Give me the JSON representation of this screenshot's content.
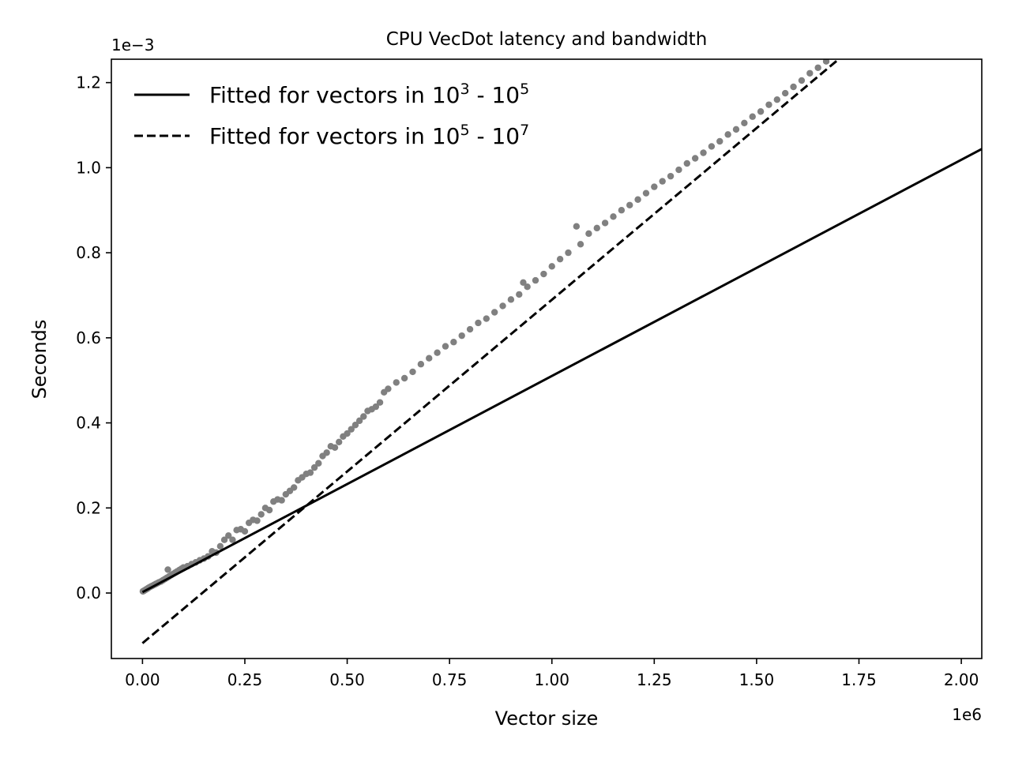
{
  "chart_data": {
    "type": "scatter",
    "title": "CPU VecDot latency and bandwidth",
    "xlabel": "Vector size",
    "ylabel": "Seconds",
    "x_offset_label": "1e6",
    "y_offset_label": "1e−3",
    "xlim": [
      -76000,
      2050000
    ],
    "ylim": [
      -0.000154,
      0.001255
    ],
    "x_ticks": [
      0,
      250000,
      500000,
      750000,
      1000000,
      1250000,
      1500000,
      1750000,
      2000000
    ],
    "x_tick_labels": [
      "0.00",
      "0.25",
      "0.50",
      "0.75",
      "1.00",
      "1.25",
      "1.50",
      "1.75",
      "2.00"
    ],
    "y_ticks": [
      0,
      0.0002,
      0.0004,
      0.0006,
      0.0008,
      0.001,
      0.0012
    ],
    "y_tick_labels": [
      "0.0",
      "0.2",
      "0.4",
      "0.6",
      "0.8",
      "1.0",
      "1.2"
    ],
    "grid": false,
    "legend": {
      "position": "top-left",
      "entries": [
        {
          "label_prefix": "Fitted for vectors in 10",
          "sup1": "3",
          "label_mid": " - 10",
          "sup2": "5",
          "style": "solid"
        },
        {
          "label_prefix": "Fitted for vectors in 10",
          "sup1": "5",
          "label_mid": " - 10",
          "sup2": "7",
          "style": "dashed"
        }
      ]
    },
    "series": [
      {
        "type": "scatter",
        "color": "#808080",
        "points": [
          [
            1000,
            4e-06
          ],
          [
            3000,
            5e-06
          ],
          [
            5000,
            6e-06
          ],
          [
            8000,
            8e-06
          ],
          [
            10000,
            9e-06
          ],
          [
            13000,
            1.1e-05
          ],
          [
            16000,
            1.3e-05
          ],
          [
            20000,
            1.5e-05
          ],
          [
            24000,
            1.7e-05
          ],
          [
            28000,
            1.9e-05
          ],
          [
            32000,
            2.1e-05
          ],
          [
            36000,
            2.3e-05
          ],
          [
            40000,
            2.5e-05
          ],
          [
            45000,
            2.7e-05
          ],
          [
            50000,
            3e-05
          ],
          [
            55000,
            3.3e-05
          ],
          [
            60000,
            3.6e-05
          ],
          [
            62000,
            5.5e-05
          ],
          [
            65000,
            3.9e-05
          ],
          [
            70000,
            4.2e-05
          ],
          [
            75000,
            4.5e-05
          ],
          [
            80000,
            4.8e-05
          ],
          [
            85000,
            5.1e-05
          ],
          [
            90000,
            5.4e-05
          ],
          [
            95000,
            5.7e-05
          ],
          [
            100000,
            6e-05
          ],
          [
            110000,
            6.3e-05
          ],
          [
            120000,
            6.8e-05
          ],
          [
            130000,
            7.2e-05
          ],
          [
            140000,
            7.7e-05
          ],
          [
            150000,
            8.1e-05
          ],
          [
            160000,
            8.6e-05
          ],
          [
            170000,
            9.8e-05
          ],
          [
            180000,
            9.5e-05
          ],
          [
            190000,
            0.00011
          ],
          [
            200000,
            0.000125
          ],
          [
            210000,
            0.000135
          ],
          [
            220000,
            0.000125
          ],
          [
            230000,
            0.000148
          ],
          [
            240000,
            0.00015
          ],
          [
            250000,
            0.000145
          ],
          [
            260000,
            0.000165
          ],
          [
            270000,
            0.000172
          ],
          [
            280000,
            0.00017
          ],
          [
            290000,
            0.000185
          ],
          [
            300000,
            0.0002
          ],
          [
            310000,
            0.000195
          ],
          [
            320000,
            0.000215
          ],
          [
            330000,
            0.00022
          ],
          [
            340000,
            0.000218
          ],
          [
            350000,
            0.000232
          ],
          [
            360000,
            0.00024
          ],
          [
            370000,
            0.000248
          ],
          [
            380000,
            0.000265
          ],
          [
            390000,
            0.000272
          ],
          [
            400000,
            0.00028
          ],
          [
            410000,
            0.000283
          ],
          [
            420000,
            0.000295
          ],
          [
            430000,
            0.000305
          ],
          [
            440000,
            0.000322
          ],
          [
            450000,
            0.00033
          ],
          [
            460000,
            0.000345
          ],
          [
            470000,
            0.000342
          ],
          [
            480000,
            0.000355
          ],
          [
            490000,
            0.000368
          ],
          [
            500000,
            0.000375
          ],
          [
            510000,
            0.000385
          ],
          [
            520000,
            0.000395
          ],
          [
            530000,
            0.000405
          ],
          [
            540000,
            0.000415
          ],
          [
            550000,
            0.000428
          ],
          [
            560000,
            0.000432
          ],
          [
            570000,
            0.000438
          ],
          [
            580000,
            0.000448
          ],
          [
            590000,
            0.000472
          ],
          [
            600000,
            0.00048
          ],
          [
            620000,
            0.000495
          ],
          [
            640000,
            0.000505
          ],
          [
            660000,
            0.00052
          ],
          [
            680000,
            0.000538
          ],
          [
            700000,
            0.000552
          ],
          [
            720000,
            0.000565
          ],
          [
            740000,
            0.00058
          ],
          [
            760000,
            0.00059
          ],
          [
            780000,
            0.000605
          ],
          [
            800000,
            0.00062
          ],
          [
            820000,
            0.000635
          ],
          [
            840000,
            0.000645
          ],
          [
            860000,
            0.00066
          ],
          [
            880000,
            0.000675
          ],
          [
            900000,
            0.00069
          ],
          [
            920000,
            0.000702
          ],
          [
            930000,
            0.00073
          ],
          [
            940000,
            0.00072
          ],
          [
            960000,
            0.000735
          ],
          [
            980000,
            0.00075
          ],
          [
            1000000,
            0.000768
          ],
          [
            1020000,
            0.000785
          ],
          [
            1040000,
            0.0008
          ],
          [
            1060000,
            0.000862
          ],
          [
            1070000,
            0.00082
          ],
          [
            1090000,
            0.000845
          ],
          [
            1110000,
            0.000858
          ],
          [
            1130000,
            0.00087
          ],
          [
            1150000,
            0.000885
          ],
          [
            1170000,
            0.0009
          ],
          [
            1190000,
            0.000912
          ],
          [
            1210000,
            0.000925
          ],
          [
            1230000,
            0.00094
          ],
          [
            1250000,
            0.000955
          ],
          [
            1270000,
            0.000968
          ],
          [
            1290000,
            0.00098
          ],
          [
            1310000,
            0.000995
          ],
          [
            1330000,
            0.00101
          ],
          [
            1350000,
            0.001022
          ],
          [
            1370000,
            0.001035
          ],
          [
            1390000,
            0.00105
          ],
          [
            1410000,
            0.001062
          ],
          [
            1430000,
            0.001078
          ],
          [
            1450000,
            0.00109
          ],
          [
            1470000,
            0.001105
          ],
          [
            1490000,
            0.00112
          ],
          [
            1510000,
            0.001132
          ],
          [
            1530000,
            0.001148
          ],
          [
            1550000,
            0.00116
          ],
          [
            1570000,
            0.001175
          ],
          [
            1590000,
            0.00119
          ],
          [
            1610000,
            0.001205
          ],
          [
            1630000,
            0.001222
          ],
          [
            1650000,
            0.001235
          ],
          [
            1670000,
            0.00125
          ]
        ]
      },
      {
        "type": "line",
        "style": "solid",
        "color": "#000000",
        "points": [
          [
            0,
            2e-06
          ],
          [
            2050000,
            0.001044
          ]
        ]
      },
      {
        "type": "line",
        "style": "dashed",
        "color": "#000000",
        "points": [
          [
            0,
            -0.000118
          ],
          [
            1880000,
            0.0014
          ]
        ]
      }
    ]
  }
}
